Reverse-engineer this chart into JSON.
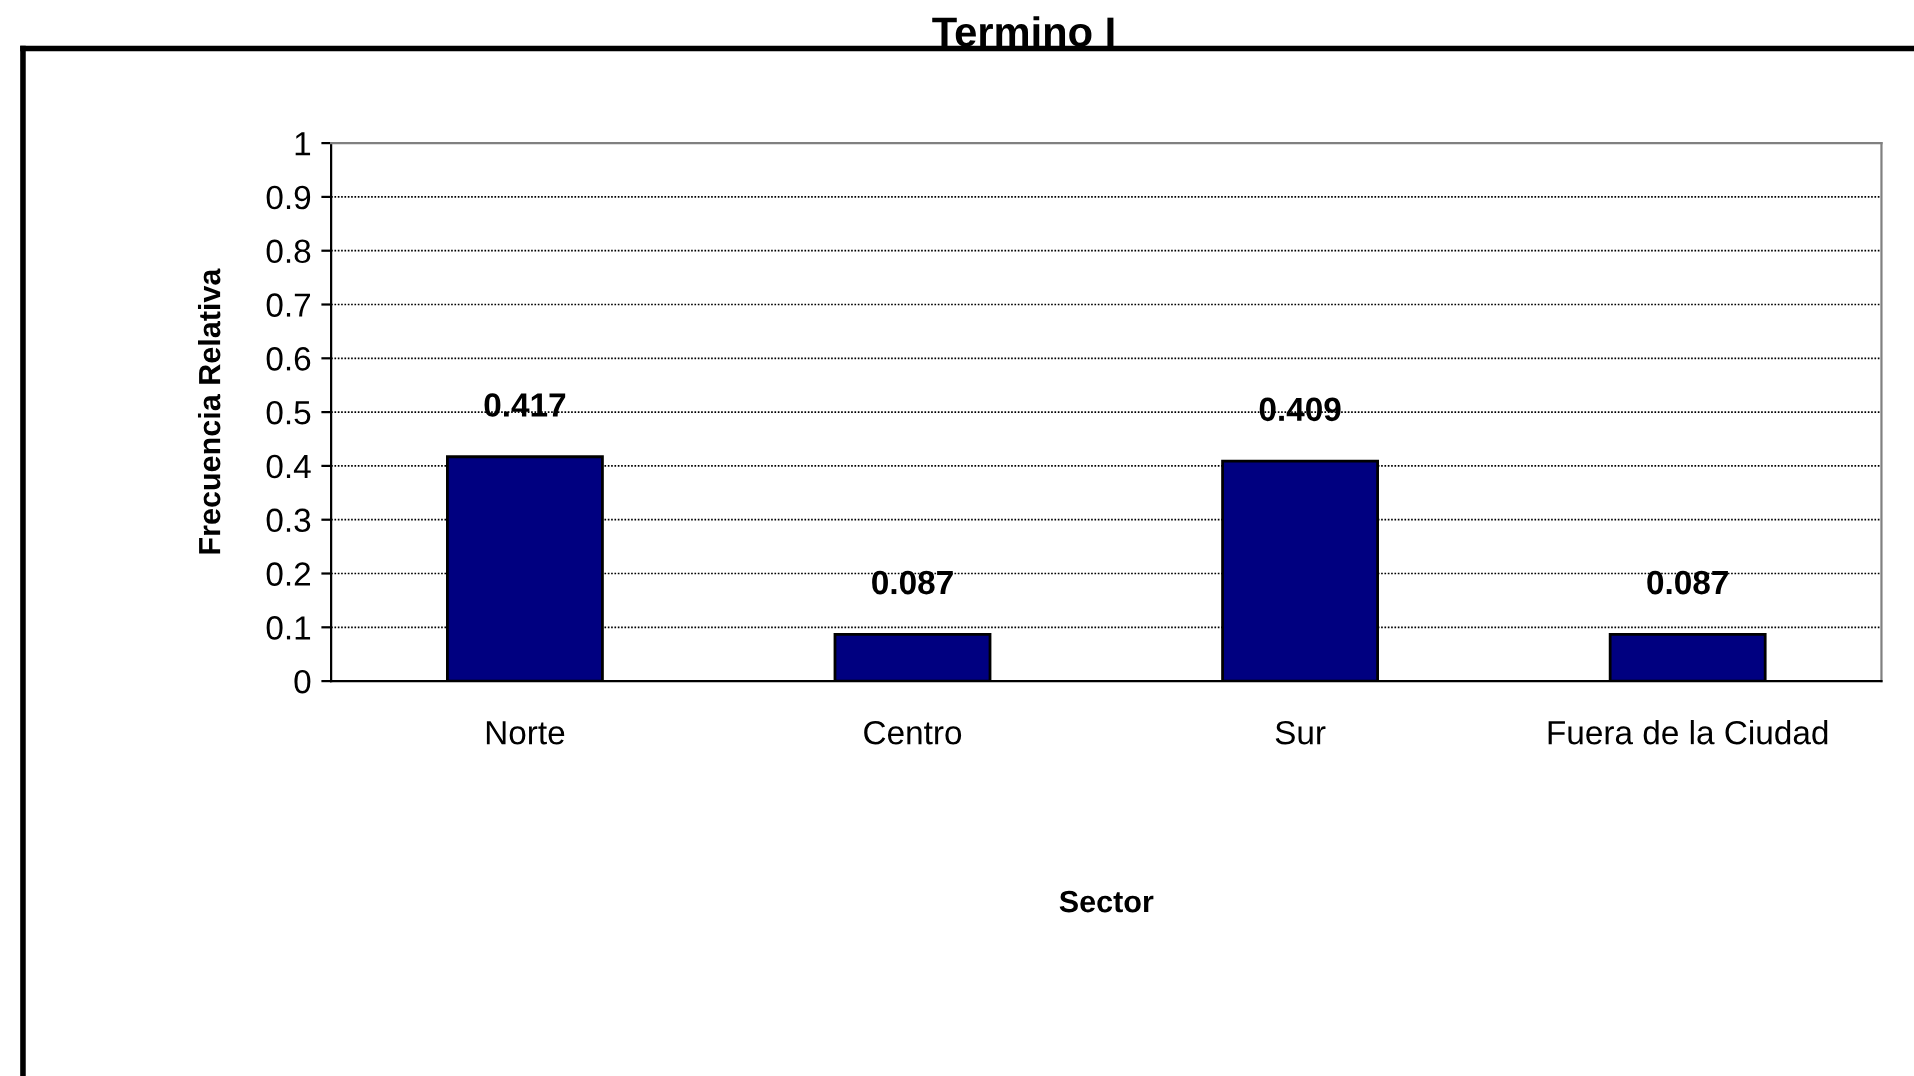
{
  "chart_data": {
    "type": "bar",
    "title": "Termino I",
    "xlabel": "Sector",
    "ylabel": "Frecuencia Relativa",
    "categories": [
      "Norte",
      "Centro",
      "Sur",
      "Fuera de la Ciudad"
    ],
    "values": [
      0.417,
      0.087,
      0.409,
      0.087
    ],
    "color": "#000080",
    "ylim": [
      0,
      1
    ],
    "yticks": [
      0,
      0.1,
      0.2,
      0.3,
      0.4,
      0.5,
      0.6,
      0.7,
      0.8,
      0.9,
      1
    ],
    "grid": "y",
    "data_labels": true
  }
}
